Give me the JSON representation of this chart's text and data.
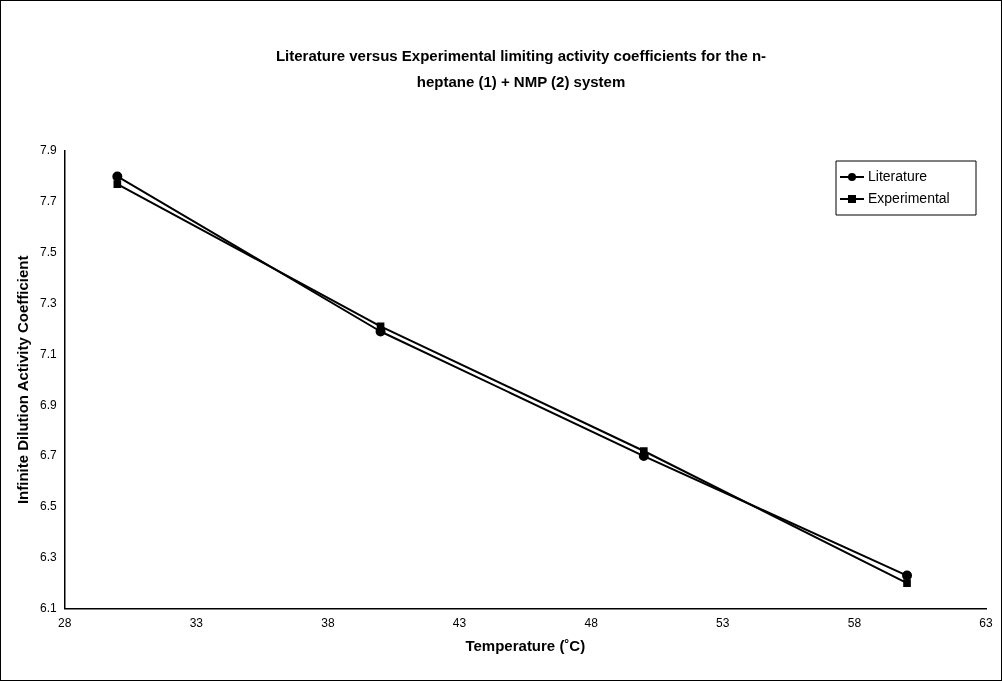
{
  "chart_data": {
    "type": "line",
    "title": "Literature versus Experimental limiting activity coefficients for the n-heptane (1) + NMP (2) system",
    "xlabel": "Temperature (˚C)",
    "ylabel": "Infinite Dilution Activity Coefficient",
    "x": [
      30,
      40,
      50,
      60
    ],
    "series": [
      {
        "name": "Literature",
        "color": "#000000",
        "marker": "circle",
        "values": [
          7.8,
          7.19,
          6.7,
          6.23
        ]
      },
      {
        "name": "Experimental",
        "color": "#000000",
        "marker": "square",
        "values": [
          7.77,
          7.21,
          6.72,
          6.2
        ]
      }
    ],
    "xlim": [
      28,
      63
    ],
    "xticks": [
      28,
      33,
      38,
      43,
      48,
      53,
      58,
      63
    ],
    "ylim": [
      6.1,
      7.9
    ],
    "yticks": [
      {
        "value": 6.1,
        "label": "6.1"
      },
      {
        "value": 6.3,
        "label": "6.3"
      },
      {
        "value": 6.5,
        "label": "6.5"
      },
      {
        "value": 6.7,
        "label": "6.7"
      },
      {
        "value": 6.9,
        "label": "6.9"
      },
      {
        "value": 7.1,
        "label": "7.1"
      },
      {
        "value": 7.3,
        "label": "7.3"
      },
      {
        "value": 7.5,
        "label": "7.5"
      },
      {
        "value": 7.7,
        "label": "7.7"
      },
      {
        "value": 7.9,
        "label": "7.9"
      }
    ],
    "grid": false,
    "legend": "top right",
    "line_style": "solid"
  }
}
